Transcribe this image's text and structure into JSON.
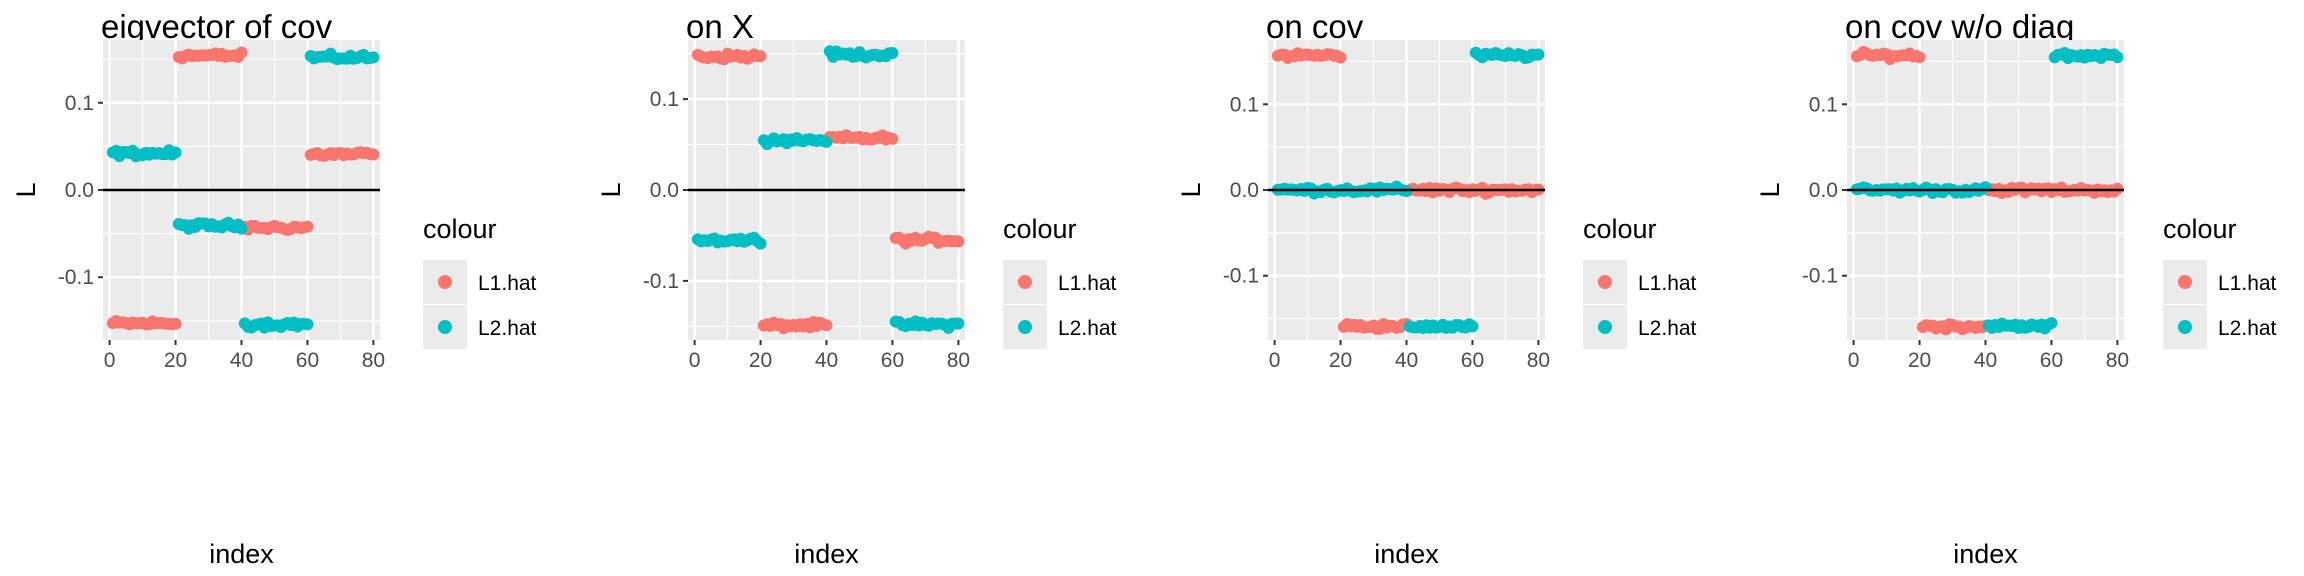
{
  "chart_data": [
    {
      "type": "scatter",
      "title": "eigvector of cov",
      "xlabel": "index",
      "ylabel": "L",
      "xlim": [
        -2,
        82
      ],
      "ylim": [
        -0.172,
        0.172
      ],
      "xticks": [
        0,
        20,
        40,
        60,
        80
      ],
      "yticks": [
        -0.1,
        0.0,
        0.1
      ],
      "ytick_labels": [
        "-0.1",
        "0.0",
        "0.1"
      ],
      "hline": 0,
      "grid": true,
      "series": [
        {
          "name": "L1.hat",
          "color": "#F8766D",
          "segments": [
            {
              "x": [
                1,
                20
              ],
              "y": -0.153
            },
            {
              "x": [
                21,
                40
              ],
              "y": 0.154
            },
            {
              "x": [
                41,
                60
              ],
              "y": -0.043
            },
            {
              "x": [
                61,
                80
              ],
              "y": 0.041
            }
          ]
        },
        {
          "name": "L2.hat",
          "color": "#00BFC4",
          "segments": [
            {
              "x": [
                1,
                20
              ],
              "y": 0.042
            },
            {
              "x": [
                21,
                40
              ],
              "y": -0.041
            },
            {
              "x": [
                41,
                60
              ],
              "y": -0.154
            },
            {
              "x": [
                61,
                80
              ],
              "y": 0.152
            }
          ]
        }
      ]
    },
    {
      "type": "scatter",
      "title": "on X",
      "xlabel": "index",
      "ylabel": "L",
      "xlim": [
        -2,
        82
      ],
      "ylim": [
        -0.165,
        0.165
      ],
      "xticks": [
        0,
        20,
        40,
        60,
        80
      ],
      "yticks": [
        -0.1,
        0.0,
        0.1
      ],
      "ytick_labels": [
        "-0.1",
        "0.0",
        "0.1"
      ],
      "hline": 0,
      "grid": true,
      "series": [
        {
          "name": "L1.hat",
          "color": "#F8766D",
          "segments": [
            {
              "x": [
                1,
                20
              ],
              "y": 0.147
            },
            {
              "x": [
                21,
                40
              ],
              "y": -0.149
            },
            {
              "x": [
                41,
                60
              ],
              "y": 0.057
            },
            {
              "x": [
                61,
                80
              ],
              "y": -0.055
            }
          ]
        },
        {
          "name": "L2.hat",
          "color": "#00BFC4",
          "segments": [
            {
              "x": [
                1,
                20
              ],
              "y": -0.055
            },
            {
              "x": [
                21,
                40
              ],
              "y": 0.055
            },
            {
              "x": [
                41,
                60
              ],
              "y": 0.149
            },
            {
              "x": [
                61,
                80
              ],
              "y": -0.148
            }
          ]
        }
      ]
    },
    {
      "type": "scatter",
      "title": "on cov",
      "xlabel": "index",
      "ylabel": "L",
      "xlim": [
        -2,
        82
      ],
      "ylim": [
        -0.175,
        0.175
      ],
      "xticks": [
        0,
        20,
        40,
        60,
        80
      ],
      "yticks": [
        -0.1,
        0.0,
        0.1
      ],
      "ytick_labels": [
        "-0.1",
        "0.0",
        "0.1"
      ],
      "hline": 0,
      "grid": true,
      "series": [
        {
          "name": "L1.hat",
          "color": "#F8766D",
          "segments": [
            {
              "x": [
                1,
                20
              ],
              "y": 0.157
            },
            {
              "x": [
                21,
                40
              ],
              "y": -0.159
            },
            {
              "x": [
                41,
                60
              ],
              "y": 0.0
            },
            {
              "x": [
                61,
                80
              ],
              "y": 0.0
            }
          ]
        },
        {
          "name": "L2.hat",
          "color": "#00BFC4",
          "segments": [
            {
              "x": [
                1,
                20
              ],
              "y": 0.0
            },
            {
              "x": [
                21,
                40
              ],
              "y": 0.0
            },
            {
              "x": [
                41,
                60
              ],
              "y": -0.159
            },
            {
              "x": [
                61,
                80
              ],
              "y": 0.157
            }
          ]
        }
      ]
    },
    {
      "type": "scatter",
      "title": "on cov w/o diag",
      "xlabel": "index",
      "ylabel": "L",
      "xlim": [
        -2,
        82
      ],
      "ylim": [
        -0.175,
        0.175
      ],
      "xticks": [
        0,
        20,
        40,
        60,
        80
      ],
      "yticks": [
        -0.1,
        0.0,
        0.1
      ],
      "ytick_labels": [
        "-0.1",
        "0.0",
        "0.1"
      ],
      "hline": 0,
      "grid": true,
      "series": [
        {
          "name": "L1.hat",
          "color": "#F8766D",
          "segments": [
            {
              "x": [
                1,
                20
              ],
              "y": 0.157
            },
            {
              "x": [
                21,
                40
              ],
              "y": -0.159
            },
            {
              "x": [
                41,
                60
              ],
              "y": 0.0
            },
            {
              "x": [
                61,
                80
              ],
              "y": 0.0
            }
          ]
        },
        {
          "name": "L2.hat",
          "color": "#00BFC4",
          "segments": [
            {
              "x": [
                1,
                20
              ],
              "y": 0.0
            },
            {
              "x": [
                21,
                40
              ],
              "y": 0.0
            },
            {
              "x": [
                41,
                60
              ],
              "y": -0.159
            },
            {
              "x": [
                61,
                80
              ],
              "y": 0.157
            }
          ]
        }
      ]
    }
  ],
  "legend": {
    "title": "colour",
    "placement": "right",
    "entries": [
      {
        "label": "L1.hat",
        "color": "#F8766D"
      },
      {
        "label": "L2.hat",
        "color": "#00BFC4"
      }
    ]
  },
  "colors": {
    "panel_background": "#EBEBEB",
    "grid_line": "#FFFFFF",
    "zero_line": "#000000",
    "tick_text": "#4D4D4D"
  }
}
